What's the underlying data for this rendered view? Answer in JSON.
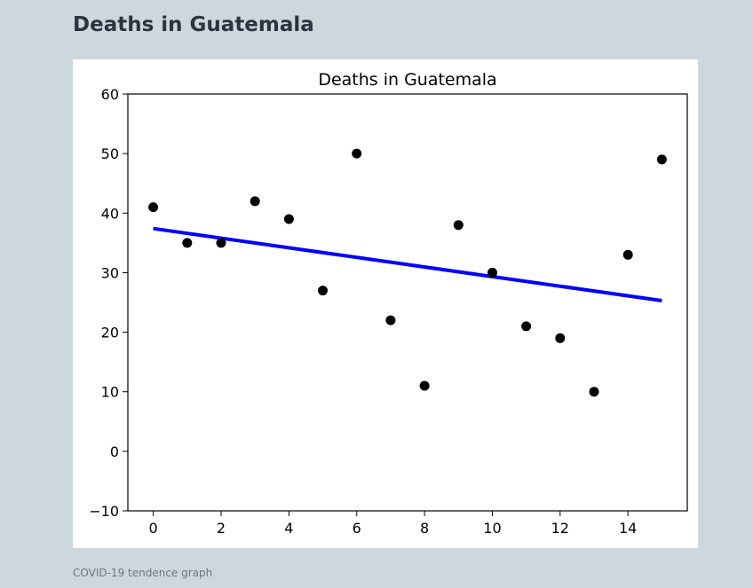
{
  "page": {
    "heading": "Deaths in Guatemala",
    "caption": "COVID-19 tendence graph"
  },
  "chart_data": {
    "type": "scatter",
    "title": "Deaths in Guatemala",
    "xlabel": "",
    "ylabel": "",
    "xlim": [
      -0.75,
      15.75
    ],
    "ylim": [
      -10,
      60
    ],
    "xticks": [
      0,
      2,
      4,
      6,
      8,
      10,
      12,
      14
    ],
    "yticks": [
      -10,
      0,
      10,
      20,
      30,
      40,
      50,
      60
    ],
    "grid": false,
    "series": [
      {
        "kind": "points",
        "color": "#000000",
        "x": [
          0,
          1,
          2,
          3,
          4,
          5,
          6,
          7,
          8,
          9,
          10,
          11,
          12,
          13,
          14,
          15
        ],
        "y": [
          41,
          35,
          35,
          42,
          39,
          27,
          50,
          22,
          11,
          38,
          30,
          21,
          19,
          10,
          33,
          49
        ]
      },
      {
        "kind": "fit-line",
        "color": "#0000ff",
        "x": [
          0,
          15
        ],
        "y": [
          37.4,
          25.3
        ]
      }
    ]
  }
}
